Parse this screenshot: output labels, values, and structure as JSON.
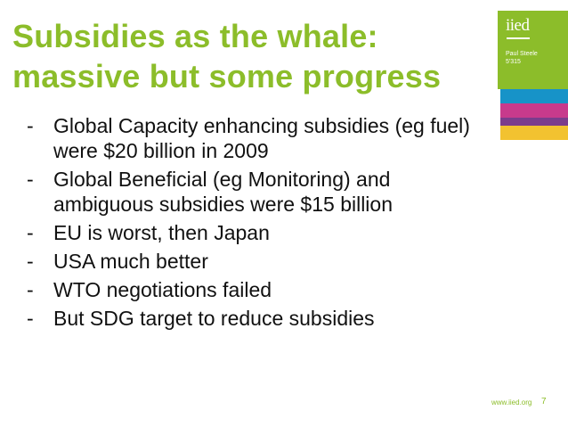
{
  "slide": {
    "title_line1": "Subsidies as the whale:",
    "title_line2": "massive but some progress",
    "bullets": [
      "Global Capacity enhancing subsidies (eg fuel) were $20 billion in 2009",
      "Global Beneficial (eg Monitoring) and ambiguous subsidies were $15 billion",
      "EU is worst, then Japan",
      "USA much better",
      "WTO negotiations failed",
      "But SDG target to reduce subsidies"
    ],
    "bullet_marker": "-"
  },
  "logo": {
    "text": "iied",
    "presenter": "Paul Steele",
    "date": "5'315"
  },
  "footer": {
    "url": "www.iied.org",
    "page_number": "7"
  },
  "colors": {
    "accent_green": "#8cbd2a",
    "bar_blue": "#1793c8",
    "bar_magenta": "#c83a8c",
    "bar_purple": "#7b3c8c",
    "bar_yellow": "#f2c230"
  }
}
